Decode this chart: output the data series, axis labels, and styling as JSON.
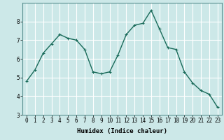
{
  "x": [
    0,
    1,
    2,
    3,
    4,
    5,
    6,
    7,
    8,
    9,
    10,
    11,
    12,
    13,
    14,
    15,
    16,
    17,
    18,
    19,
    20,
    21,
    22,
    23
  ],
  "y": [
    4.8,
    5.4,
    6.3,
    6.8,
    7.3,
    7.1,
    7.0,
    6.5,
    5.3,
    5.2,
    5.3,
    6.2,
    7.3,
    7.8,
    7.9,
    8.6,
    7.6,
    6.6,
    6.5,
    5.3,
    4.7,
    4.3,
    4.1,
    3.4
  ],
  "line_color": "#1a6b5a",
  "marker": "+",
  "marker_size": 3,
  "bg_color": "#cce8e8",
  "grid_color": "#ffffff",
  "xlabel": "Humidex (Indice chaleur)",
  "ylim": [
    3,
    9
  ],
  "xlim": [
    -0.5,
    23.5
  ],
  "yticks": [
    3,
    4,
    5,
    6,
    7,
    8
  ],
  "xticks": [
    0,
    1,
    2,
    3,
    4,
    5,
    6,
    7,
    8,
    9,
    10,
    11,
    12,
    13,
    14,
    15,
    16,
    17,
    18,
    19,
    20,
    21,
    22,
    23
  ],
  "axis_fontsize": 6.5,
  "tick_fontsize": 5.5,
  "linewidth": 1.0,
  "markeredgewidth": 0.8
}
